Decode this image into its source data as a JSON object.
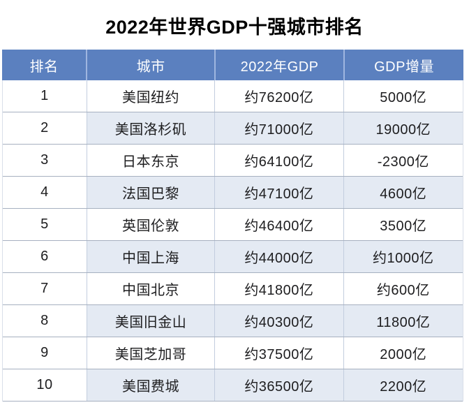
{
  "title": "2022年世界GDP十强城市排名",
  "colors": {
    "header_bg": "#5b80bf",
    "header_divider": "#9fb6e0",
    "header_text": "#ffffff",
    "stripe_bg": "#e4eaf3",
    "text": "#1d1d1f",
    "row_border": "#a6b0c0",
    "cell_border": "#c2cdde",
    "title": "#000000",
    "page_bg": "#ffffff"
  },
  "chart_data": {
    "type": "table",
    "title": "2022年世界GDP十强城市排名",
    "columns": [
      "排名",
      "城市",
      "2022年GDP",
      "GDP增量"
    ],
    "rows": [
      [
        "1",
        "美国纽约",
        "约76200亿",
        "5000亿"
      ],
      [
        "2",
        "美国洛杉矶",
        "约71000亿",
        "19000亿"
      ],
      [
        "3",
        "日本东京",
        "约64100亿",
        "-2300亿"
      ],
      [
        "4",
        "法国巴黎",
        "约47100亿",
        "4600亿"
      ],
      [
        "5",
        "英国伦敦",
        "约46400亿",
        "3500亿"
      ],
      [
        "6",
        "中国上海",
        "约44000亿",
        "约1000亿"
      ],
      [
        "7",
        "中国北京",
        "约41800亿",
        "约600亿"
      ],
      [
        "8",
        "美国旧金山",
        "约40300亿",
        "11800亿"
      ],
      [
        "9",
        "美国芝加哥",
        "约37500亿",
        "2000亿"
      ],
      [
        "10",
        "美国费城",
        "约36500亿",
        "2200亿"
      ]
    ],
    "layout": {
      "striped_rows": "even rows tinted except rank column",
      "header_style": "blue background, white text",
      "grid": "horizontal row borders and vertical cell dividers"
    }
  }
}
